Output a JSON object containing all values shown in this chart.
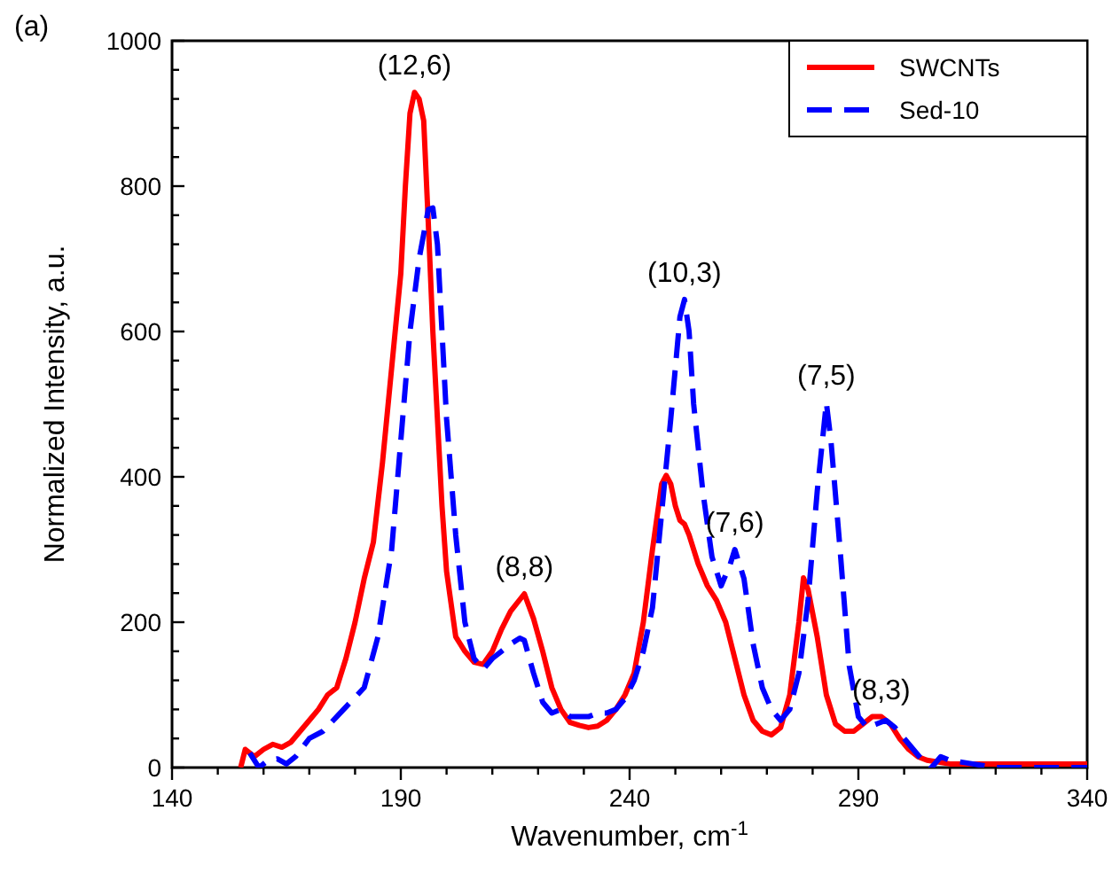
{
  "chart_data": {
    "type": "line",
    "xlabel": "Wavenumber, cm$^{-1}$",
    "ylabel": "Normalized Intensity, a.u.",
    "xlim": [
      140,
      340
    ],
    "ylim": [
      0,
      1000
    ],
    "xticks": [
      140,
      {
        "value": 150,
        "label": null
      },
      {
        "value": 160,
        "label": null
      },
      {
        "value": 170,
        "label": null
      },
      {
        "value": 180,
        "label": null
      },
      190,
      {
        "value": 200,
        "label": null
      },
      {
        "value": 210,
        "label": null
      },
      {
        "value": 220,
        "label": null
      },
      {
        "value": 230,
        "label": null
      },
      240,
      {
        "value": 250,
        "label": null
      },
      {
        "value": 260,
        "label": null
      },
      {
        "value": 270,
        "label": null
      },
      {
        "value": 280,
        "label": null
      },
      290,
      {
        "value": 300,
        "label": null
      },
      {
        "value": 310,
        "label": null
      },
      {
        "value": 320,
        "label": null
      },
      {
        "value": 330,
        "label": null
      },
      340
    ],
    "yticks": [
      0,
      {
        "value": 40,
        "label": null
      },
      {
        "value": 80,
        "label": null
      },
      {
        "value": 120,
        "label": null
      },
      {
        "value": 160,
        "label": null
      },
      200,
      {
        "value": 240,
        "label": null
      },
      {
        "value": 280,
        "label": null
      },
      {
        "value": 320,
        "label": null
      },
      {
        "value": 360,
        "label": null
      },
      400,
      {
        "value": 440,
        "label": null
      },
      {
        "value": 480,
        "label": null
      },
      {
        "value": 520,
        "label": null
      },
      {
        "value": 560,
        "label": null
      },
      600,
      {
        "value": 640,
        "label": null
      },
      {
        "value": 680,
        "label": null
      },
      {
        "value": 720,
        "label": null
      },
      {
        "value": 760,
        "label": null
      },
      800,
      {
        "value": 840,
        "label": null
      },
      {
        "value": 880,
        "label": null
      },
      {
        "value": 920,
        "label": null
      },
      {
        "value": 960,
        "label": null
      },
      1000
    ],
    "legend": "top right",
    "grid": false,
    "marker": "none",
    "series": [
      {
        "name": "SWCNTs",
        "color": "#ff0000",
        "line_style": "solid",
        "x": [
          155,
          156,
          158,
          160,
          162,
          164,
          166,
          168,
          170,
          172,
          174,
          176,
          178,
          180,
          182,
          184,
          186,
          188,
          190,
          191,
          192,
          193,
          194,
          195,
          196,
          197,
          198,
          199,
          200,
          202,
          204,
          206,
          208,
          210,
          212,
          214,
          217,
          219,
          221,
          223,
          225,
          227,
          229,
          231,
          233,
          235,
          237,
          239,
          241,
          243,
          245,
          247,
          248,
          249,
          250,
          251,
          252,
          253,
          255,
          257,
          259,
          261,
          263,
          265,
          267,
          269,
          271,
          273,
          275,
          277,
          278,
          279,
          281,
          283,
          285,
          287,
          289,
          291,
          293,
          295,
          297,
          299,
          301,
          303,
          305,
          310,
          320,
          330,
          340
        ],
        "values": [
          0,
          25,
          15,
          25,
          32,
          28,
          35,
          50,
          65,
          80,
          100,
          110,
          150,
          200,
          260,
          310,
          420,
          550,
          680,
          800,
          900,
          929,
          920,
          890,
          750,
          600,
          480,
          360,
          270,
          180,
          160,
          145,
          142,
          160,
          190,
          215,
          239,
          205,
          160,
          110,
          80,
          62,
          58,
          55,
          57,
          65,
          80,
          100,
          130,
          200,
          300,
          390,
          402,
          390,
          360,
          340,
          335,
          320,
          280,
          250,
          230,
          200,
          150,
          100,
          65,
          50,
          45,
          55,
          100,
          200,
          261,
          245,
          180,
          100,
          60,
          50,
          50,
          60,
          70,
          70,
          60,
          40,
          25,
          15,
          10,
          5,
          5,
          5,
          5
        ]
      },
      {
        "name": "Sed-10",
        "color": "#0000ff",
        "line_style": "dashed",
        "x": [
          157,
          159,
          161,
          163,
          165,
          167,
          170,
          173,
          176,
          179,
          182,
          185,
          188,
          190,
          192,
          194,
          196,
          197,
          198,
          199,
          200,
          202,
          204,
          206,
          208,
          210,
          212,
          214,
          216,
          217,
          219,
          221,
          223,
          225,
          227,
          229,
          231,
          233,
          235,
          237,
          239,
          241,
          243,
          245,
          247,
          249,
          251,
          252,
          253,
          254,
          256,
          258,
          260,
          262,
          263,
          265,
          267,
          269,
          271,
          273,
          275,
          277,
          279,
          281,
          283,
          284,
          286,
          288,
          290,
          292,
          294,
          296,
          298,
          300,
          302,
          304,
          306,
          308,
          310,
          315,
          320,
          330,
          340
        ],
        "values": [
          20,
          0,
          10,
          12,
          5,
          15,
          40,
          50,
          70,
          90,
          110,
          180,
          300,
          450,
          600,
          700,
          768,
          770,
          720,
          600,
          480,
          320,
          200,
          150,
          135,
          150,
          160,
          170,
          178,
          175,
          130,
          90,
          75,
          80,
          70,
          70,
          70,
          75,
          75,
          80,
          95,
          120,
          160,
          220,
          350,
          480,
          620,
          644,
          600,
          500,
          380,
          290,
          250,
          280,
          300,
          260,
          170,
          110,
          80,
          65,
          80,
          130,
          230,
          380,
          502,
          450,
          300,
          140,
          70,
          55,
          60,
          65,
          55,
          40,
          25,
          10,
          0,
          15,
          10,
          5,
          0,
          0,
          0
        ]
      }
    ],
    "annotations": [
      {
        "text": "(12,6)",
        "x": 193,
        "y": 929
      },
      {
        "text": "(8,8)",
        "x": 217,
        "y": 239
      },
      {
        "text": "(10,3)",
        "x": 252,
        "y": 644
      },
      {
        "text": "(7,6)",
        "x": 263,
        "y": 300
      },
      {
        "text": "(7,5)",
        "x": 283,
        "y": 502
      },
      {
        "text": "(8,3)",
        "x": 295,
        "y": 70
      },
      "(a)"
    ]
  }
}
